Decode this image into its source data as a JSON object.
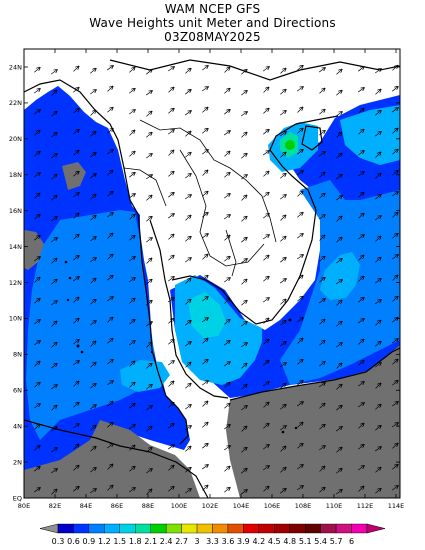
{
  "title": {
    "line1": "WAM NCEP GFS",
    "line2": "Wave Heights unit Meter and Directions",
    "line3": "03Z08MAY2025"
  },
  "axes": {
    "lon_labels": [
      "80E",
      "82E",
      "84E",
      "86E",
      "88E",
      "100E",
      "102E",
      "104E",
      "106E",
      "108E",
      "110E",
      "112E",
      "114E"
    ],
    "lat_labels": [
      "24N",
      "22N",
      "20N",
      "18N",
      "16N",
      "14N",
      "12N",
      "10N",
      "8N",
      "6N",
      "4N",
      "2N",
      "EQ"
    ]
  },
  "colorbar": {
    "values": [
      "0.3",
      "0.6",
      "0.9",
      "1.2",
      "1.5",
      "1.8",
      "2.1",
      "2.4",
      "2.7",
      "3",
      "3.3",
      "3.6",
      "3.9",
      "4.2",
      "4.5",
      "4.8",
      "5.1",
      "5.4",
      "5.7",
      "6"
    ],
    "colors": [
      "#0000c8",
      "#0033ff",
      "#0080ff",
      "#00b0ff",
      "#00d2e6",
      "#00e0a0",
      "#00d000",
      "#80e000",
      "#e6e600",
      "#f0c000",
      "#f08c00",
      "#e05000",
      "#e00000",
      "#c00000",
      "#a00000",
      "#800000",
      "#600000",
      "#a0104a",
      "#d01080",
      "#f000b0"
    ],
    "under_color": "#909090",
    "over_color": "#c0006a"
  },
  "colors": {
    "land": "#ffffff",
    "no_data": "#707070",
    "wave_low": "#0033ff",
    "wave_mid": "#0080ff",
    "wave_high": "#00b0ff",
    "wave_peak": "#00d2e6",
    "wave_max": "#00e0a0"
  }
}
